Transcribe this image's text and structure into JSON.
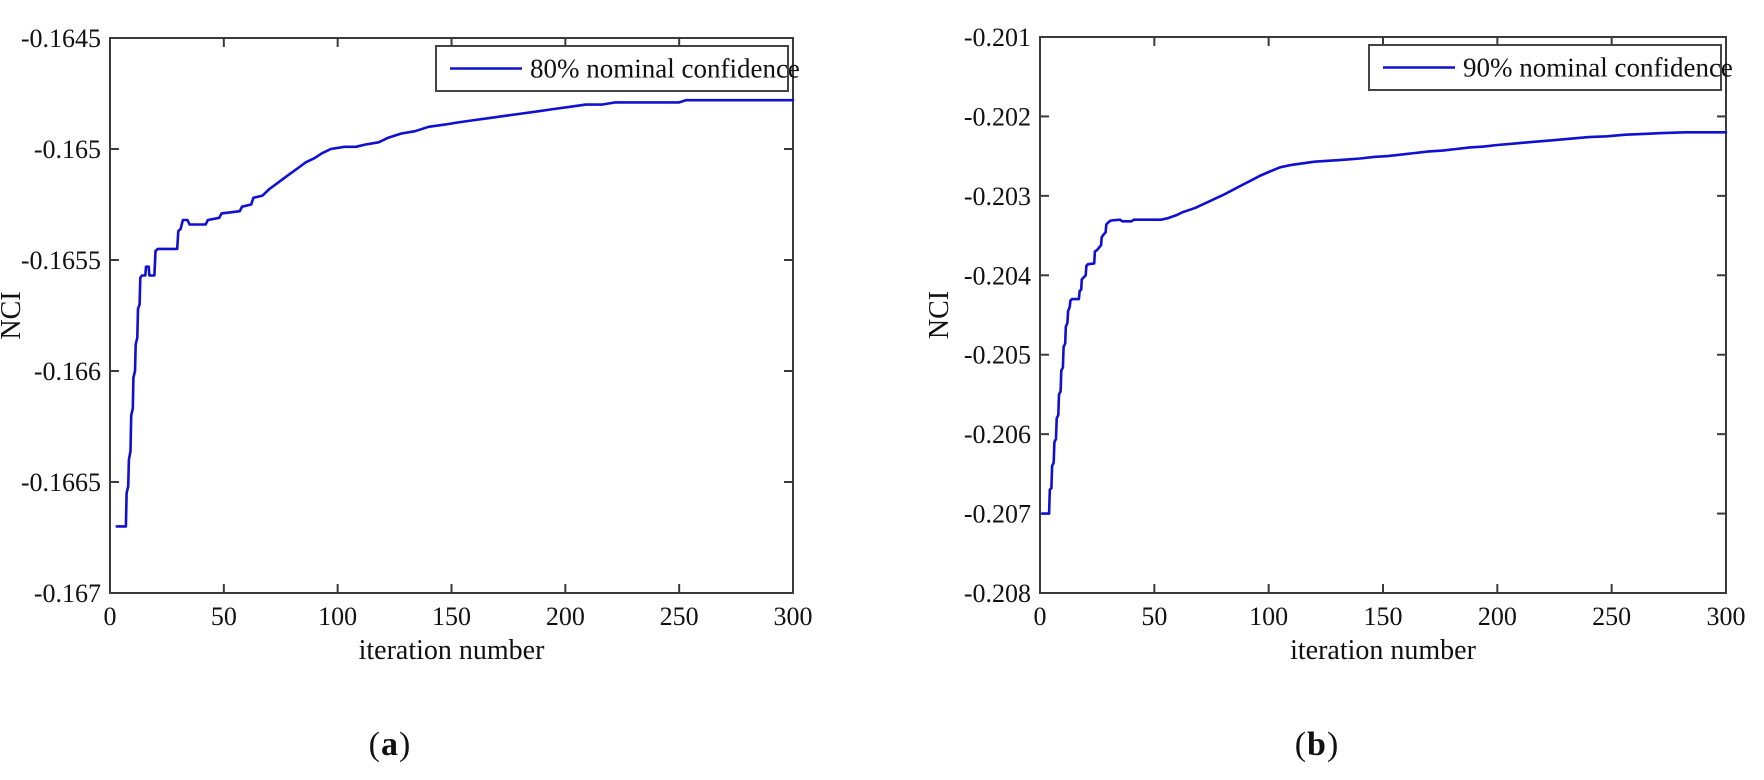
{
  "figure": {
    "captions": {
      "a": {
        "open": "(",
        "letter": "a",
        "close": ")"
      },
      "b": {
        "open": "(",
        "letter": "b",
        "close": ")"
      }
    }
  },
  "colors": {
    "line": "#1010d2",
    "axis": "#3a3a3a",
    "text": "#111111",
    "background": "#ffffff",
    "legend_border": "#444444"
  },
  "chart_data": [
    {
      "id": "chart-a",
      "type": "line",
      "title": "",
      "xlabel": "iteration number",
      "ylabel": "NCI",
      "xlim": [
        0,
        300
      ],
      "ylim": [
        -0.167,
        -0.1645
      ],
      "grid": false,
      "xticks": [
        0,
        50,
        100,
        150,
        200,
        250,
        300
      ],
      "xtick_labels": [
        "0",
        "50",
        "100",
        "150",
        "200",
        "250",
        "300"
      ],
      "yticks": [
        -0.167,
        -0.1665,
        -0.166,
        -0.1655,
        -0.165,
        -0.1645
      ],
      "ytick_labels": [
        "-0.167",
        "-0.1665",
        "-0.166",
        "-0.1655",
        "-0.165",
        "-0.1645"
      ],
      "legend": {
        "label": "80% nominal confidence",
        "position": "top-right"
      },
      "series": [
        {
          "name": "80% nominal confidence",
          "points": [
            [
              3,
              -0.1667
            ],
            [
              7,
              -0.1667
            ],
            [
              7.3,
              -0.16655
            ],
            [
              8,
              -0.16652
            ],
            [
              8.3,
              -0.1664
            ],
            [
              9,
              -0.16636
            ],
            [
              9.3,
              -0.1662
            ],
            [
              10,
              -0.16617
            ],
            [
              10.3,
              -0.16603
            ],
            [
              11,
              -0.166
            ],
            [
              11.3,
              -0.16588
            ],
            [
              12,
              -0.16585
            ],
            [
              12.3,
              -0.16572
            ],
            [
              13,
              -0.1657
            ],
            [
              13.3,
              -0.16558
            ],
            [
              14,
              -0.16557
            ],
            [
              15.5,
              -0.16557
            ],
            [
              15.8,
              -0.16553
            ],
            [
              17,
              -0.16553
            ],
            [
              17.3,
              -0.16557
            ],
            [
              19.5,
              -0.16557
            ],
            [
              20,
              -0.16546
            ],
            [
              21,
              -0.16545
            ],
            [
              29.5,
              -0.16545
            ],
            [
              30,
              -0.16537
            ],
            [
              31,
              -0.16536
            ],
            [
              32,
              -0.16532
            ],
            [
              34,
              -0.16532
            ],
            [
              35,
              -0.16534
            ],
            [
              42,
              -0.16534
            ],
            [
              43,
              -0.16532
            ],
            [
              48,
              -0.16531
            ],
            [
              49,
              -0.16529
            ],
            [
              57,
              -0.16528
            ],
            [
              58,
              -0.16526
            ],
            [
              62,
              -0.16525
            ],
            [
              63,
              -0.16522
            ],
            [
              67,
              -0.16521
            ],
            [
              70,
              -0.16518
            ],
            [
              74,
              -0.16515
            ],
            [
              78,
              -0.16512
            ],
            [
              82,
              -0.16509
            ],
            [
              86,
              -0.16506
            ],
            [
              90,
              -0.16504
            ],
            [
              93,
              -0.16502
            ],
            [
              95,
              -0.16501
            ],
            [
              97,
              -0.165
            ],
            [
              103,
              -0.16499
            ],
            [
              108,
              -0.16499
            ],
            [
              112,
              -0.16498
            ],
            [
              118,
              -0.16497
            ],
            [
              122,
              -0.16495
            ],
            [
              128,
              -0.16493
            ],
            [
              134,
              -0.16492
            ],
            [
              140,
              -0.1649
            ],
            [
              147,
              -0.16489
            ],
            [
              153,
              -0.16488
            ],
            [
              160,
              -0.16487
            ],
            [
              167,
              -0.16486
            ],
            [
              174,
              -0.16485
            ],
            [
              181,
              -0.16484
            ],
            [
              188,
              -0.16483
            ],
            [
              195,
              -0.16482
            ],
            [
              202,
              -0.16481
            ],
            [
              209,
              -0.1648
            ],
            [
              216,
              -0.1648
            ],
            [
              222,
              -0.16479
            ],
            [
              250,
              -0.16479
            ],
            [
              253,
              -0.16478
            ],
            [
              300,
              -0.16478
            ]
          ]
        }
      ]
    },
    {
      "id": "chart-b",
      "type": "line",
      "title": "",
      "xlabel": "iteration number",
      "ylabel": "NCI",
      "xlim": [
        0,
        300
      ],
      "ylim": [
        -0.208,
        -0.201
      ],
      "grid": false,
      "xticks": [
        0,
        50,
        100,
        150,
        200,
        250,
        300
      ],
      "xtick_labels": [
        "0",
        "50",
        "100",
        "150",
        "200",
        "250",
        "300"
      ],
      "yticks": [
        -0.208,
        -0.207,
        -0.206,
        -0.205,
        -0.204,
        -0.203,
        -0.202,
        -0.201
      ],
      "ytick_labels": [
        "-0.208",
        "-0.207",
        "-0.206",
        "-0.205",
        "-0.204",
        "-0.203",
        "-0.202",
        "-0.201"
      ],
      "legend": {
        "label": "90% nominal confidence",
        "position": "top-right"
      },
      "series": [
        {
          "name": "90% nominal confidence",
          "points": [
            [
              1,
              -0.207
            ],
            [
              4,
              -0.207
            ],
            [
              4.3,
              -0.2067
            ],
            [
              5,
              -0.20668
            ],
            [
              5.3,
              -0.2064
            ],
            [
              6,
              -0.20636
            ],
            [
              6.3,
              -0.2061
            ],
            [
              7,
              -0.20606
            ],
            [
              7.3,
              -0.2058
            ],
            [
              8,
              -0.20576
            ],
            [
              8.3,
              -0.2055
            ],
            [
              9,
              -0.20546
            ],
            [
              9.3,
              -0.2052
            ],
            [
              10,
              -0.20516
            ],
            [
              10.3,
              -0.2049
            ],
            [
              11,
              -0.20486
            ],
            [
              11.3,
              -0.20465
            ],
            [
              12,
              -0.2046
            ],
            [
              12.3,
              -0.20445
            ],
            [
              13,
              -0.2044
            ],
            [
              13.3,
              -0.20432
            ],
            [
              14,
              -0.2043
            ],
            [
              17,
              -0.2043
            ],
            [
              17.3,
              -0.2042
            ],
            [
              18,
              -0.20418
            ],
            [
              18.3,
              -0.20405
            ],
            [
              19,
              -0.20403
            ],
            [
              20,
              -0.204
            ],
            [
              20.3,
              -0.20388
            ],
            [
              21,
              -0.20386
            ],
            [
              23.7,
              -0.20385
            ],
            [
              24,
              -0.2037
            ],
            [
              25,
              -0.20368
            ],
            [
              26.7,
              -0.20362
            ],
            [
              27,
              -0.20352
            ],
            [
              28,
              -0.20348
            ],
            [
              28.7,
              -0.20346
            ],
            [
              29,
              -0.20336
            ],
            [
              30,
              -0.20333
            ],
            [
              31,
              -0.20331
            ],
            [
              35,
              -0.2033
            ],
            [
              36,
              -0.20332
            ],
            [
              40,
              -0.20332
            ],
            [
              41,
              -0.2033
            ],
            [
              53,
              -0.2033
            ],
            [
              56,
              -0.20328
            ],
            [
              58,
              -0.20326
            ],
            [
              60,
              -0.20324
            ],
            [
              62,
              -0.20321
            ],
            [
              65,
              -0.20318
            ],
            [
              68,
              -0.20315
            ],
            [
              71,
              -0.20311
            ],
            [
              74,
              -0.20307
            ],
            [
              77,
              -0.20303
            ],
            [
              80,
              -0.20299
            ],
            [
              84,
              -0.20293
            ],
            [
              88,
              -0.20287
            ],
            [
              92,
              -0.20281
            ],
            [
              96,
              -0.20275
            ],
            [
              100,
              -0.2027
            ],
            [
              105,
              -0.20264
            ],
            [
              110,
              -0.20261
            ],
            [
              115,
              -0.20259
            ],
            [
              120,
              -0.20257
            ],
            [
              125,
              -0.20256
            ],
            [
              131,
              -0.20255
            ],
            [
              140,
              -0.20253
            ],
            [
              146,
              -0.20251
            ],
            [
              152,
              -0.2025
            ],
            [
              158,
              -0.20248
            ],
            [
              164,
              -0.20246
            ],
            [
              170,
              -0.20244
            ],
            [
              176,
              -0.20243
            ],
            [
              182,
              -0.20241
            ],
            [
              188,
              -0.20239
            ],
            [
              194,
              -0.20238
            ],
            [
              200,
              -0.20236
            ],
            [
              208,
              -0.20234
            ],
            [
              216,
              -0.20232
            ],
            [
              224,
              -0.2023
            ],
            [
              232,
              -0.20228
            ],
            [
              240,
              -0.20226
            ],
            [
              248,
              -0.20225
            ],
            [
              256,
              -0.20223
            ],
            [
              264,
              -0.20222
            ],
            [
              272,
              -0.20221
            ],
            [
              282,
              -0.2022
            ],
            [
              300,
              -0.2022
            ]
          ]
        }
      ]
    }
  ]
}
